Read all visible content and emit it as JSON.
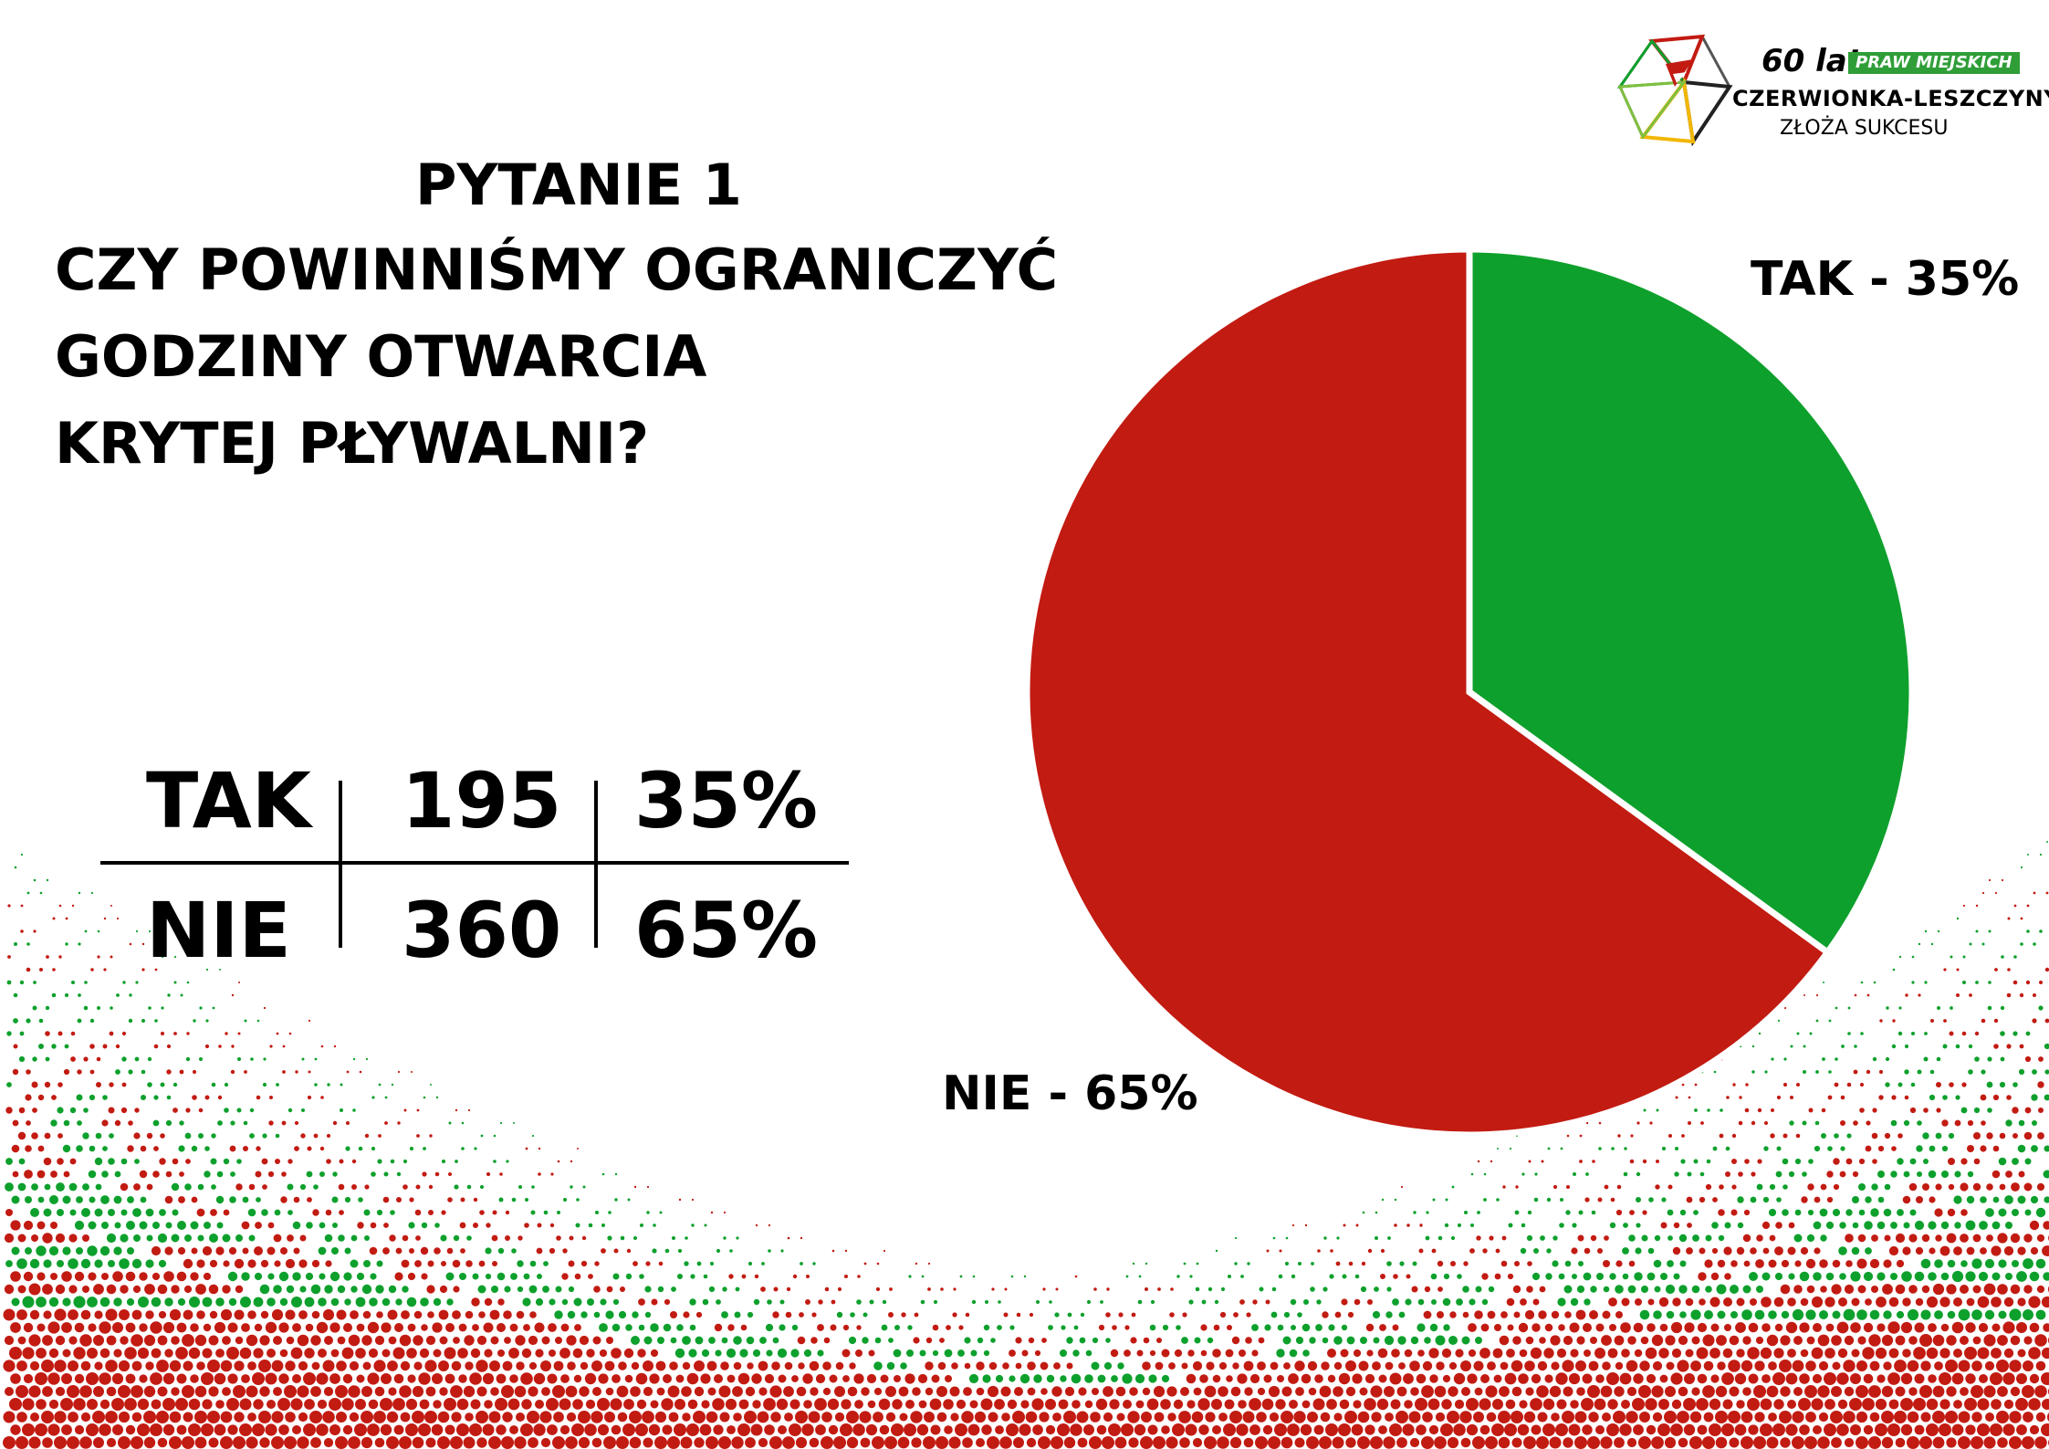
{
  "title": {
    "line1": "PYTANIE 1",
    "line2": "CZY POWINNIŚMY OGRANICZYĆ",
    "line3": "GODZINY OTWARCIA",
    "line4": "KRYTEJ PŁYWALNI?"
  },
  "table": {
    "rows": [
      {
        "label": "TAK",
        "count": "195",
        "percent": "35%"
      },
      {
        "label": "NIE",
        "count": "360",
        "percent": "65%"
      }
    ]
  },
  "logo": {
    "years": "60 lat",
    "badge": "PRAW MIEJSKICH",
    "town": "CZERWIONKA-LESZCZYNY",
    "slogan": "ZŁOŻA SUKCESU"
  },
  "colors": {
    "yes": "#0ea02c",
    "no": "#c21b12",
    "badge": "#2f9e38"
  },
  "chart_data": {
    "type": "pie",
    "title": "",
    "categories": [
      "TAK",
      "NIE"
    ],
    "values": [
      35,
      65
    ],
    "counts": [
      195,
      360
    ],
    "slice_labels": [
      "TAK - 35%",
      "NIE - 65%"
    ],
    "colors": [
      "#0ea02c",
      "#c21b12"
    ],
    "legend": "none"
  }
}
